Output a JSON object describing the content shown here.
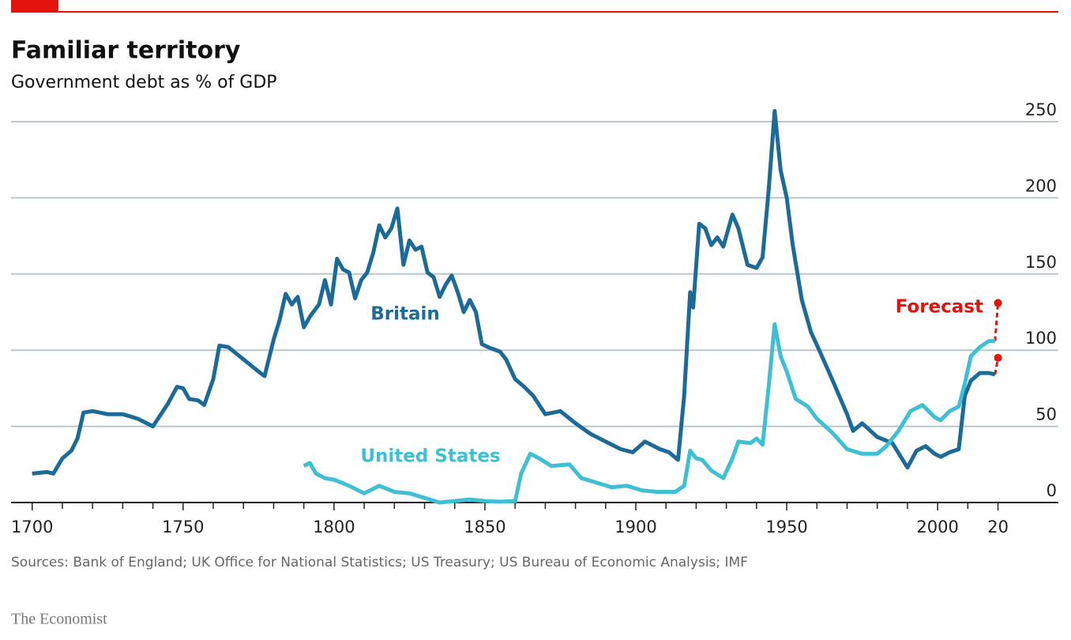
{
  "chart_data": {
    "type": "line",
    "title": "Familiar territory",
    "subtitle": "Government debt as % of GDP",
    "source": "Sources: Bank of England; UK Office for National Statistics; US Treasury; US Bureau of Economic Analysis; IMF",
    "brand": "The Economist",
    "xlim": [
      1693,
      2040
    ],
    "ylim": [
      0,
      250
    ],
    "yticks": [
      0,
      50,
      100,
      150,
      200,
      250
    ],
    "xticks": [
      1700,
      1750,
      1800,
      1850,
      1900,
      1950,
      2000,
      {
        "value": 2020,
        "label": "20"
      }
    ],
    "x_minor_ticks": [
      1710,
      1720,
      1730,
      1740,
      1760,
      1770,
      1780,
      1790,
      1810,
      1820,
      1830,
      1840,
      1860,
      1870,
      1880,
      1890,
      1910,
      1920,
      1930,
      1940,
      1960,
      1970,
      1980,
      1990,
      2010
    ],
    "grid": true,
    "series": [
      {
        "name": "Britain",
        "color": "#1c6a98",
        "x": [
          1700,
          1705,
          1707,
          1710,
          1713,
          1715,
          1717,
          1720,
          1725,
          1730,
          1735,
          1740,
          1745,
          1748,
          1750,
          1752,
          1755,
          1757,
          1760,
          1762,
          1765,
          1770,
          1775,
          1777,
          1780,
          1782,
          1784,
          1786,
          1788,
          1790,
          1792,
          1795,
          1797,
          1799,
          1801,
          1803,
          1805,
          1807,
          1809,
          1811,
          1813,
          1815,
          1817,
          1819,
          1821,
          1823,
          1825,
          1827,
          1829,
          1831,
          1833,
          1835,
          1837,
          1839,
          1841,
          1843,
          1845,
          1847,
          1849,
          1851,
          1855,
          1857,
          1860,
          1863,
          1866,
          1870,
          1875,
          1880,
          1885,
          1890,
          1895,
          1899,
          1903,
          1908,
          1911,
          1914,
          1916,
          1918,
          1919,
          1921,
          1923,
          1925,
          1927,
          1929,
          1932,
          1934,
          1937,
          1940,
          1942,
          1944,
          1946,
          1948,
          1950,
          1952,
          1955,
          1958,
          1961,
          1965,
          1970,
          1972,
          1975,
          1980,
          1985,
          1990,
          1993,
          1996,
          1999,
          2001,
          2004,
          2007,
          2009,
          2011,
          2014,
          2017,
          2019
        ],
        "values": [
          19,
          20,
          19,
          29,
          34,
          42,
          59,
          60,
          58,
          58,
          55,
          50,
          65,
          76,
          75,
          68,
          67,
          64,
          81,
          103,
          102,
          94,
          86,
          83,
          107,
          120,
          137,
          130,
          135,
          115,
          122,
          130,
          146,
          130,
          160,
          153,
          151,
          134,
          146,
          151,
          164,
          182,
          174,
          180,
          193,
          156,
          172,
          166,
          168,
          151,
          148,
          135,
          143,
          149,
          138,
          125,
          133,
          125,
          104,
          102,
          99,
          94,
          81,
          76,
          70,
          58,
          60,
          52,
          45,
          40,
          35,
          33,
          40,
          35,
          33,
          28,
          70,
          138,
          128,
          183,
          180,
          169,
          174,
          168,
          189,
          180,
          156,
          154,
          161,
          205,
          257,
          218,
          200,
          169,
          133,
          112,
          99,
          81,
          58,
          47,
          52,
          43,
          39,
          23,
          34,
          37,
          32,
          30,
          33,
          35,
          70,
          80,
          85,
          85,
          84
        ]
      },
      {
        "name": "United States",
        "color": "#3ebfd4",
        "x": [
          1790,
          1792,
          1794,
          1797,
          1800,
          1805,
          1810,
          1815,
          1820,
          1825,
          1830,
          1835,
          1840,
          1845,
          1850,
          1855,
          1860,
          1862,
          1865,
          1868,
          1872,
          1878,
          1882,
          1887,
          1892,
          1897,
          1902,
          1907,
          1913,
          1916,
          1918,
          1920,
          1922,
          1925,
          1929,
          1932,
          1934,
          1938,
          1940,
          1942,
          1944,
          1946,
          1948,
          1950,
          1953,
          1957,
          1960,
          1965,
          1970,
          1975,
          1980,
          1983,
          1987,
          1991,
          1995,
          1999,
          2001,
          2004,
          2007,
          2009,
          2011,
          2014,
          2017,
          2019
        ],
        "values": [
          24,
          26,
          19,
          16,
          15,
          11,
          6,
          11,
          7,
          6,
          3,
          0,
          1,
          2,
          1,
          0.5,
          1,
          19,
          32,
          29,
          24,
          25,
          16,
          13,
          10,
          11,
          8,
          7,
          7,
          11,
          34,
          29,
          28,
          21,
          16,
          29,
          40,
          39,
          42,
          38,
          76,
          117,
          96,
          86,
          68,
          63,
          55,
          46,
          35,
          32,
          32,
          37,
          47,
          60,
          64,
          56,
          54,
          60,
          63,
          78,
          96,
          102,
          106,
          106
        ]
      }
    ],
    "forecast_label": "Forecast",
    "forecast_color": "#e3120b",
    "forecasts": [
      {
        "x": [
          2019,
          2020
        ],
        "values": [
          106,
          131
        ]
      },
      {
        "x": [
          2019,
          2020
        ],
        "values": [
          84,
          95
        ]
      }
    ]
  }
}
